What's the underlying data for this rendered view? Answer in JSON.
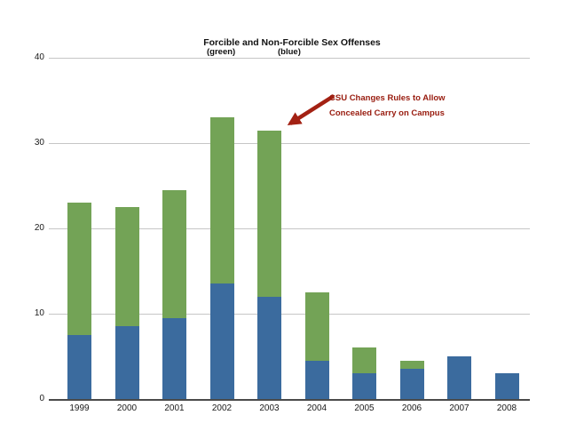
{
  "title": "Forcible and Non-Forcible Sex Offenses",
  "subtitle": {
    "green_label": "(green)",
    "blue_label": "(blue)"
  },
  "annotation": {
    "line1": "CSU Changes Rules to Allow",
    "line2": "Concealed Carry on Campus"
  },
  "colors": {
    "forcible_green": "#73a356",
    "non_forcible_blue": "#3b6b9e",
    "annotation_red": "#981b0e",
    "arrow_red": "#a32113",
    "gridline": "#c6c6c6",
    "axis_line": "#4a4a4a",
    "label_text": "#1a1a1a"
  },
  "chart_data": {
    "type": "bar",
    "stacked": true,
    "title": "Forcible and Non-Forcible Sex Offenses",
    "categories": [
      "1999",
      "2000",
      "2001",
      "2002",
      "2003",
      "2004",
      "2005",
      "2006",
      "2007",
      "2008"
    ],
    "series": [
      {
        "name": "Non-Forcible (blue)",
        "color": "#3b6b9e",
        "values": [
          7.5,
          8.5,
          9.5,
          13.5,
          12,
          4.5,
          3,
          3.5,
          5,
          3
        ]
      },
      {
        "name": "Forcible (green)",
        "color": "#73a356",
        "values": [
          15.5,
          14,
          15,
          19.5,
          19.5,
          8,
          3,
          1,
          0,
          0
        ]
      }
    ],
    "totals": [
      23,
      22.5,
      24.5,
      33,
      31.5,
      12.5,
      6,
      4.5,
      5,
      3
    ],
    "xlabel": "",
    "ylabel": "",
    "ylim": [
      0,
      40
    ],
    "y_ticks": [
      0,
      10,
      20,
      30,
      40
    ],
    "grid": true,
    "legend_position": "none"
  }
}
